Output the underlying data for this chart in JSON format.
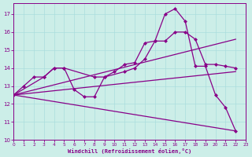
{
  "background_color": "#cceee8",
  "grid_color": "#aadddd",
  "line_color": "#880088",
  "xlabel": "Windchill (Refroidissement éolien,°C)",
  "xlim": [
    0,
    23
  ],
  "ylim": [
    10,
    17.6
  ],
  "yticks": [
    10,
    11,
    12,
    13,
    14,
    15,
    16,
    17
  ],
  "xticks": [
    0,
    1,
    2,
    3,
    4,
    5,
    6,
    7,
    8,
    9,
    10,
    11,
    12,
    13,
    14,
    15,
    16,
    17,
    18,
    19,
    20,
    21,
    22,
    23
  ],
  "line1_x": [
    0,
    1,
    2,
    3,
    4,
    5,
    6,
    7,
    8,
    9,
    10,
    11,
    12,
    13,
    14,
    15,
    16,
    17,
    18,
    19,
    20,
    21,
    22
  ],
  "line1_y": [
    12.5,
    13.0,
    13.5,
    13.5,
    14.0,
    14.0,
    12.8,
    12.4,
    12.4,
    13.5,
    13.8,
    14.2,
    14.3,
    15.4,
    15.5,
    17.0,
    17.3,
    16.6,
    14.1,
    14.1,
    12.5,
    11.8,
    10.5
  ],
  "line2_x": [
    0,
    3,
    4,
    5,
    8,
    9,
    11,
    12,
    13,
    14,
    15,
    16,
    17,
    18,
    19,
    20,
    21,
    22
  ],
  "line2_y": [
    12.5,
    13.5,
    14.0,
    14.0,
    13.5,
    13.5,
    13.8,
    14.0,
    14.5,
    15.5,
    15.5,
    16.0,
    16.0,
    15.6,
    14.2,
    14.2,
    14.1,
    14.0
  ],
  "line3_x": [
    0,
    22
  ],
  "line3_y": [
    12.5,
    13.8
  ],
  "line4_x": [
    0,
    22
  ],
  "line4_y": [
    12.5,
    10.5
  ],
  "line5_x": [
    0,
    22
  ],
  "line5_y": [
    12.5,
    15.6
  ],
  "markersize": 2.5,
  "linewidth": 0.9
}
